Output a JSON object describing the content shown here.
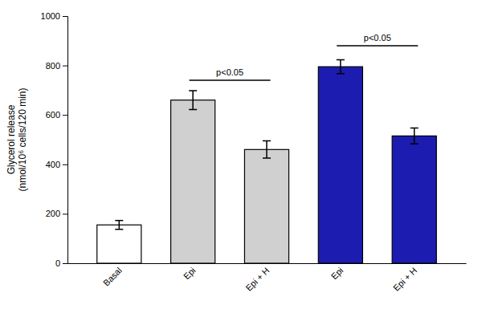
{
  "chart_data": {
    "type": "bar",
    "categories": [
      "Basal",
      "Epi",
      "Epi + H",
      "Epi",
      "Epi + H"
    ],
    "values": [
      155,
      660,
      460,
      795,
      515
    ],
    "errors": [
      18,
      38,
      35,
      28,
      32
    ],
    "colors": [
      "#ffffff",
      "#d0d0d0",
      "#d0d0d0",
      "#1c1cb0",
      "#1c1cb0"
    ],
    "ylabel": "Glycerol release\n(nmol/10⁶ cells/120 min)",
    "ylim": [
      0,
      1000
    ],
    "yticks": [
      0,
      200,
      400,
      600,
      800,
      1000
    ],
    "grid": false,
    "annotations": [
      {
        "x1": 1,
        "x2": 2,
        "y": 740,
        "label": "p<0.05"
      },
      {
        "x1": 3,
        "x2": 4,
        "y": 880,
        "label": "p<0.05"
      }
    ]
  }
}
